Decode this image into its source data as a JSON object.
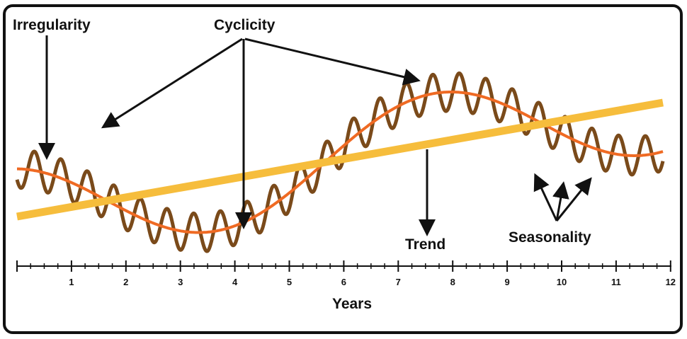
{
  "labels": {
    "irregularity": "Irregularity",
    "cyclicity": "Cyclicity",
    "trend": "Trend",
    "seasonality": "Seasonality"
  },
  "axis": {
    "label": "Years",
    "ticks": [
      "1",
      "2",
      "3",
      "4",
      "5",
      "6",
      "7",
      "8",
      "9",
      "10",
      "11",
      "12"
    ]
  },
  "colors": {
    "frame": "#111111",
    "trend": "#f6bd3c",
    "cycle": "#ef6a23",
    "seasonal": "#7a4a1a",
    "arrow": "#111111"
  }
}
